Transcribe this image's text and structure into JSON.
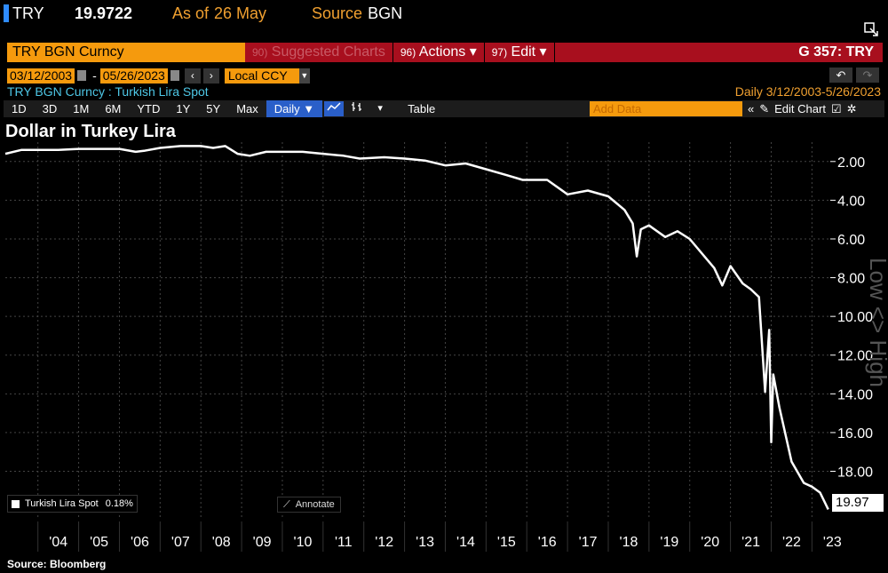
{
  "header": {
    "ticker": "TRY",
    "price": "19.9722",
    "as_of_label": "As of",
    "as_of_value": "26 May",
    "source_label": "Source",
    "source_value": "BGN"
  },
  "command_bar": {
    "security": "TRY BGN Curncy",
    "menus": [
      {
        "num": "90)",
        "label": "Suggested Charts"
      },
      {
        "num": "96)",
        "label": "Actions ▾"
      },
      {
        "num": "97)",
        "label": "Edit ▾"
      }
    ],
    "right_label": "G 357: TRY"
  },
  "date_range": {
    "start": "03/12/2003",
    "end": "05/26/2023",
    "currency": "Local CCY"
  },
  "subtitle": "TRY BGN Curncy : Turkish Lira Spot",
  "range_info": "Daily   3/12/2003-5/26/2023",
  "toolbar": {
    "periods": [
      "1D",
      "3D",
      "1M",
      "6M",
      "YTD",
      "1Y",
      "5Y",
      "Max"
    ],
    "frequency": "Daily ▼",
    "table_label": "Table",
    "add_data_placeholder": "Add Data",
    "edit_chart_label": "Edit Chart"
  },
  "chart_title": "Dollar in Turkey Lira",
  "legend": {
    "name": "Turkish Lira Spot",
    "change": "0.18%"
  },
  "annotate_label": "Annotate",
  "last_value_label": "19.97",
  "low_high_label": "Low <> High",
  "source": "Source:  Bloomberg",
  "colors": {
    "accent_orange": "#f59a0d",
    "bar_red": "#a80f1e",
    "line": "#ffffff",
    "active_blue": "#2a5fc9"
  },
  "chart_data": {
    "type": "line",
    "title": "Dollar in Turkey Lira",
    "y_axis": "inverted",
    "y_position": "right",
    "ylim": [
      1,
      20.5
    ],
    "yticks": [
      2,
      4,
      6,
      8,
      10,
      12,
      14,
      16,
      18
    ],
    "ytick_labels": [
      "2.00",
      "4.00",
      "6.00",
      "8.00",
      "10.00",
      "12.00",
      "14.00",
      "16.00",
      "18.00"
    ],
    "xlim": [
      2003.2,
      2023.45
    ],
    "xticks": [
      2004,
      2005,
      2006,
      2007,
      2008,
      2009,
      2010,
      2011,
      2012,
      2013,
      2014,
      2015,
      2016,
      2017,
      2018,
      2019,
      2020,
      2021,
      2022,
      2023
    ],
    "xtick_labels": [
      "'04",
      "'05",
      "'06",
      "'07",
      "'08",
      "'09",
      "'10",
      "'11",
      "'12",
      "'13",
      "'14",
      "'15",
      "'16",
      "'17",
      "'18",
      "'19",
      "'20",
      "'21",
      "'22",
      "'23"
    ],
    "grid": true,
    "legend_position": "bottom-left",
    "series": [
      {
        "name": "Turkish Lira Spot",
        "x": [
          2003.2,
          2003.6,
          2004.0,
          2004.5,
          2005.0,
          2005.5,
          2006.0,
          2006.4,
          2006.6,
          2007.0,
          2007.5,
          2008.0,
          2008.3,
          2008.6,
          2008.9,
          2009.2,
          2009.6,
          2010.0,
          2010.5,
          2011.0,
          2011.5,
          2011.9,
          2012.5,
          2013.0,
          2013.5,
          2014.0,
          2014.5,
          2015.0,
          2015.5,
          2015.9,
          2016.5,
          2017.0,
          2017.5,
          2018.0,
          2018.4,
          2018.6,
          2018.7,
          2018.8,
          2019.0,
          2019.4,
          2019.7,
          2020.0,
          2020.4,
          2020.6,
          2020.8,
          2021.0,
          2021.3,
          2021.5,
          2021.7,
          2021.85,
          2021.95,
          2022.0,
          2022.05,
          2022.2,
          2022.5,
          2022.8,
          2023.0,
          2023.2,
          2023.4
        ],
        "y": [
          1.6,
          1.4,
          1.4,
          1.4,
          1.35,
          1.35,
          1.35,
          1.5,
          1.45,
          1.3,
          1.2,
          1.2,
          1.3,
          1.2,
          1.6,
          1.7,
          1.5,
          1.5,
          1.5,
          1.6,
          1.7,
          1.85,
          1.78,
          1.85,
          1.95,
          2.2,
          2.1,
          2.4,
          2.7,
          2.95,
          2.95,
          3.7,
          3.5,
          3.8,
          4.5,
          5.2,
          6.9,
          5.5,
          5.3,
          5.9,
          5.6,
          6.0,
          7.0,
          7.5,
          8.4,
          7.4,
          8.3,
          8.6,
          9.0,
          13.9,
          10.7,
          16.5,
          13.0,
          14.7,
          17.5,
          18.6,
          18.8,
          19.1,
          19.97
        ]
      }
    ]
  }
}
